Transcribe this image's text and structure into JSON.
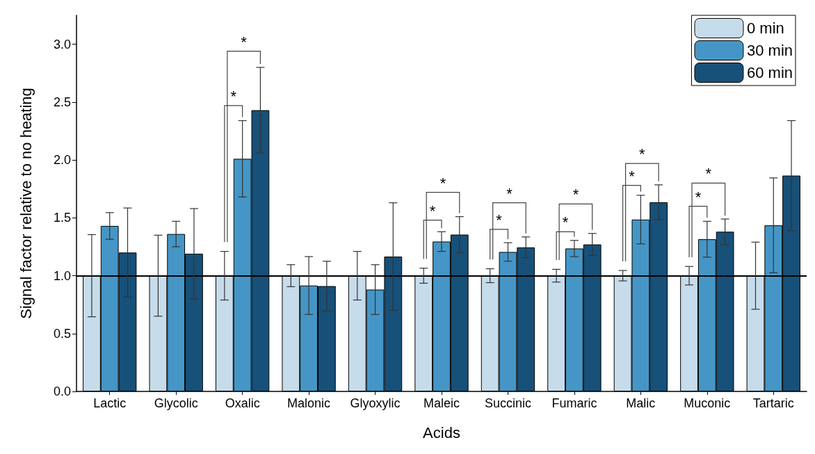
{
  "chart_data": {
    "type": "bar",
    "xlabel": "Acids",
    "ylabel": "Signal factor relative to no heating",
    "categories": [
      "Lactic",
      "Glycolic",
      "Oxalic",
      "Malonic",
      "Glyoxylic",
      "Maleic",
      "Succinic",
      "Fumaric",
      "Malic",
      "Muconic",
      "Tartaric"
    ],
    "series": [
      {
        "name": "0 min",
        "color": "#c6dcea",
        "values": [
          1.0,
          1.0,
          1.0,
          1.0,
          1.0,
          1.0,
          1.0,
          1.0,
          1.0,
          1.0,
          1.0
        ],
        "errors": [
          0.355,
          0.35,
          0.21,
          0.095,
          0.21,
          0.065,
          0.06,
          0.055,
          0.045,
          0.08,
          0.29
        ]
      },
      {
        "name": "30 min",
        "color": "#4596c6",
        "values": [
          1.43,
          1.36,
          2.01,
          0.915,
          0.88,
          1.295,
          1.205,
          1.235,
          1.485,
          1.315,
          1.435
        ],
        "errors": [
          0.115,
          0.11,
          0.33,
          0.25,
          0.215,
          0.085,
          0.08,
          0.07,
          0.21,
          0.155,
          0.41
        ]
      },
      {
        "name": "60 min",
        "color": "#175078",
        "values": [
          1.2,
          1.19,
          2.43,
          0.91,
          1.165,
          1.355,
          1.245,
          1.27,
          1.635,
          1.38,
          1.865
        ],
        "errors": [
          0.385,
          0.39,
          0.37,
          0.215,
          0.465,
          0.155,
          0.09,
          0.095,
          0.15,
          0.11,
          0.475
        ]
      }
    ],
    "ylim": [
      0,
      3.25
    ],
    "yticks": [
      {
        "value": 0,
        "label": "0.0"
      },
      {
        "value": 0.5,
        "label": "0.5"
      },
      {
        "value": 1,
        "label": "1.0"
      },
      {
        "value": 1.5,
        "label": "1.5"
      },
      {
        "value": 2,
        "label": "2.0"
      },
      {
        "value": 2.5,
        "label": "2.5"
      },
      {
        "value": 3,
        "label": "3.0"
      }
    ],
    "ref_lines": [
      {
        "axis": "y",
        "value": 1.0,
        "color": "#000000"
      }
    ],
    "annotations": [
      "*",
      "*",
      "*",
      "*",
      "*",
      "*",
      "*",
      "*",
      "*",
      "*",
      "*",
      "*"
    ],
    "legend": "top right",
    "grid": false
  }
}
